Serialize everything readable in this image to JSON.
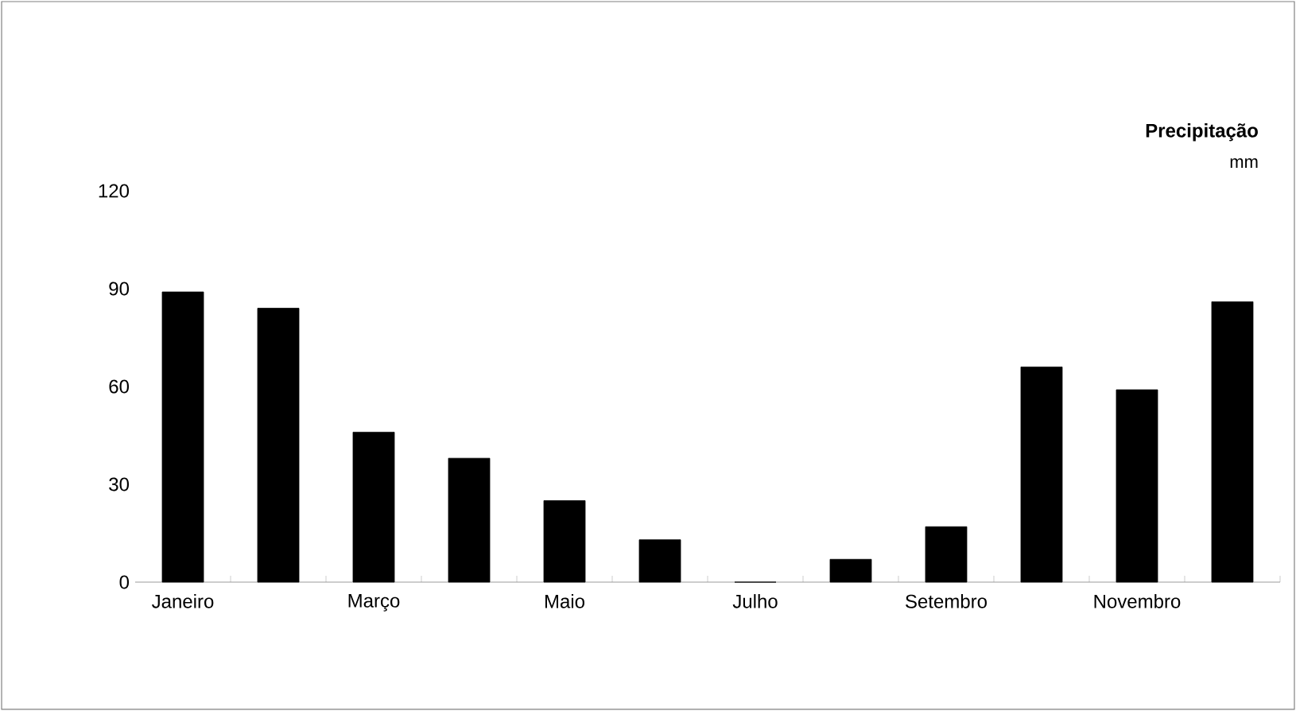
{
  "chart_data": {
    "type": "bar",
    "title": "Precipitação",
    "ylabel": "mm",
    "categories": [
      "Janeiro",
      null,
      "Março",
      null,
      "Maio",
      null,
      "Julho",
      null,
      "Setembro",
      null,
      "Novembro",
      null
    ],
    "values": [
      89,
      84,
      46,
      38,
      25,
      13,
      0,
      7,
      17,
      66,
      59,
      86
    ],
    "color": "#000000",
    "ylim": [
      0,
      120
    ],
    "yticks": [
      0,
      30,
      60,
      90,
      120
    ],
    "grid": false
  }
}
